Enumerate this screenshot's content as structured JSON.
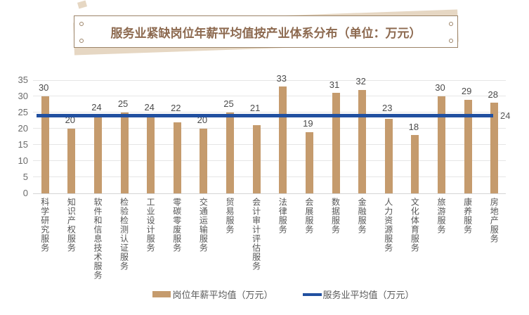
{
  "title": {
    "text": "服务业紧缺岗位年薪平均值按产业体系分布（单位：万元）"
  },
  "chart_data": {
    "type": "bar",
    "categories": [
      "科学研究服务",
      "知识产权服务",
      "软件和信息技术服务",
      "检验检测认证服务",
      "工业设计服务",
      "零碳零废服务",
      "交通运输服务",
      "贸易服务",
      "会计审计评估服务",
      "法律服务",
      "会展服务",
      "数据服务",
      "金融服务",
      "人力资源服务",
      "文化体育服务",
      "旅游服务",
      "康养服务",
      "房地产服务"
    ],
    "series": [
      {
        "name": "岗位年薪平均值（万元）",
        "type": "bar",
        "color": "#C59B6D",
        "values": [
          30,
          20,
          24,
          25,
          24,
          22,
          20,
          25,
          21,
          33,
          19,
          31,
          32,
          23,
          18,
          30,
          29,
          28
        ]
      },
      {
        "name": "服务业平均值（万元）",
        "type": "line",
        "color": "#2150A0",
        "value": 24,
        "end_label": "24"
      }
    ],
    "ylim": [
      0,
      35
    ],
    "ytick_step": 5,
    "grid": true,
    "legend_position": "bottom"
  },
  "colors": {
    "bar": "#C59B6D",
    "line": "#2150A0",
    "title_text": "#8D6A50",
    "banner_backdrop": "#E6D7C3",
    "grid": "#E6E6E6"
  }
}
